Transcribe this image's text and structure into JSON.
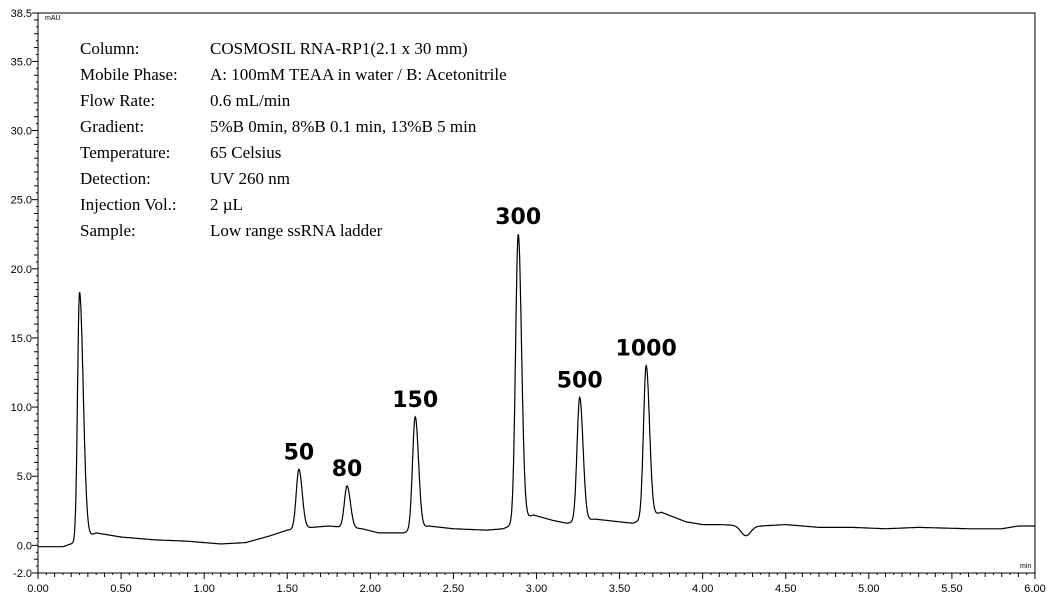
{
  "chart_data": {
    "type": "line",
    "xlabel": "min",
    "ylabel": "mAU",
    "xlim": [
      0,
      6.0
    ],
    "ylim": [
      -2.0,
      38.5
    ],
    "x_ticks": [
      "0.00",
      "0.50",
      "1.00",
      "1.50",
      "2.00",
      "2.50",
      "3.00",
      "3.50",
      "4.00",
      "4.50",
      "5.00",
      "5.50",
      "6.00"
    ],
    "x_tick_values": [
      0,
      0.5,
      1.0,
      1.5,
      2.0,
      2.5,
      3.0,
      3.5,
      4.0,
      4.5,
      5.0,
      5.5,
      6.0
    ],
    "y_ticks": [
      "-2.0",
      "0.0",
      "5.0",
      "10.0",
      "15.0",
      "20.0",
      "25.0",
      "30.0",
      "35.0",
      "38.5"
    ],
    "y_tick_values": [
      -2.0,
      0,
      5,
      10,
      15,
      20,
      25,
      30,
      35,
      38.5
    ],
    "conditions": [
      {
        "label": "Column:",
        "value": "COSMOSIL RNA-RP1(2.1 x 30 mm)"
      },
      {
        "label": "Mobile Phase:",
        "value": "A: 100mM TEAA in water / B: Acetonitrile"
      },
      {
        "label": "Flow Rate:",
        "value": "0.6 mL/min"
      },
      {
        "label": "Gradient:",
        "value": "5%B 0min, 8%B 0.1 min, 13%B 5 min"
      },
      {
        "label": "Temperature:",
        "value": "65 Celsius"
      },
      {
        "label": "Detection:",
        "value": "UV 260 nm"
      },
      {
        "label": "Injection Vol.:",
        "value": "2 µL"
      },
      {
        "label": "Sample:",
        "value": "Low range ssRNA ladder"
      }
    ],
    "peaks": [
      {
        "x": 0.25,
        "y": 18.3,
        "label": ""
      },
      {
        "x": 1.57,
        "y": 5.5,
        "label": "50"
      },
      {
        "x": 1.86,
        "y": 4.3,
        "label": "80"
      },
      {
        "x": 2.27,
        "y": 9.3,
        "label": "150"
      },
      {
        "x": 2.89,
        "y": 22.5,
        "label": "300"
      },
      {
        "x": 3.26,
        "y": 10.7,
        "label": "500"
      },
      {
        "x": 3.66,
        "y": 13.0,
        "label": "1000"
      },
      {
        "x": 4.26,
        "y": 0.7,
        "label": ""
      }
    ],
    "baseline": [
      [
        0,
        -0.1
      ],
      [
        0.15,
        -0.1
      ],
      [
        0.22,
        0.2
      ],
      [
        0.35,
        0.9
      ],
      [
        0.5,
        0.6
      ],
      [
        0.7,
        0.4
      ],
      [
        0.9,
        0.3
      ],
      [
        1.1,
        0.1
      ],
      [
        1.25,
        0.2
      ],
      [
        1.4,
        0.7
      ],
      [
        1.5,
        1.1
      ],
      [
        1.65,
        1.3
      ],
      [
        1.75,
        1.4
      ],
      [
        1.95,
        1.2
      ],
      [
        2.05,
        0.9
      ],
      [
        2.2,
        0.9
      ],
      [
        2.35,
        1.4
      ],
      [
        2.5,
        1.2
      ],
      [
        2.7,
        1.1
      ],
      [
        2.8,
        1.2
      ],
      [
        2.98,
        2.2
      ],
      [
        3.1,
        1.8
      ],
      [
        3.18,
        1.6
      ],
      [
        3.35,
        1.9
      ],
      [
        3.5,
        1.7
      ],
      [
        3.58,
        1.6
      ],
      [
        3.75,
        2.4
      ],
      [
        3.9,
        1.7
      ],
      [
        4.0,
        1.5
      ],
      [
        4.1,
        1.5
      ],
      [
        4.35,
        1.4
      ],
      [
        4.5,
        1.5
      ],
      [
        4.7,
        1.3
      ],
      [
        4.9,
        1.3
      ],
      [
        5.1,
        1.2
      ],
      [
        5.3,
        1.3
      ],
      [
        5.6,
        1.2
      ],
      [
        5.8,
        1.2
      ],
      [
        5.9,
        1.4
      ],
      [
        6.0,
        1.4
      ]
    ]
  }
}
